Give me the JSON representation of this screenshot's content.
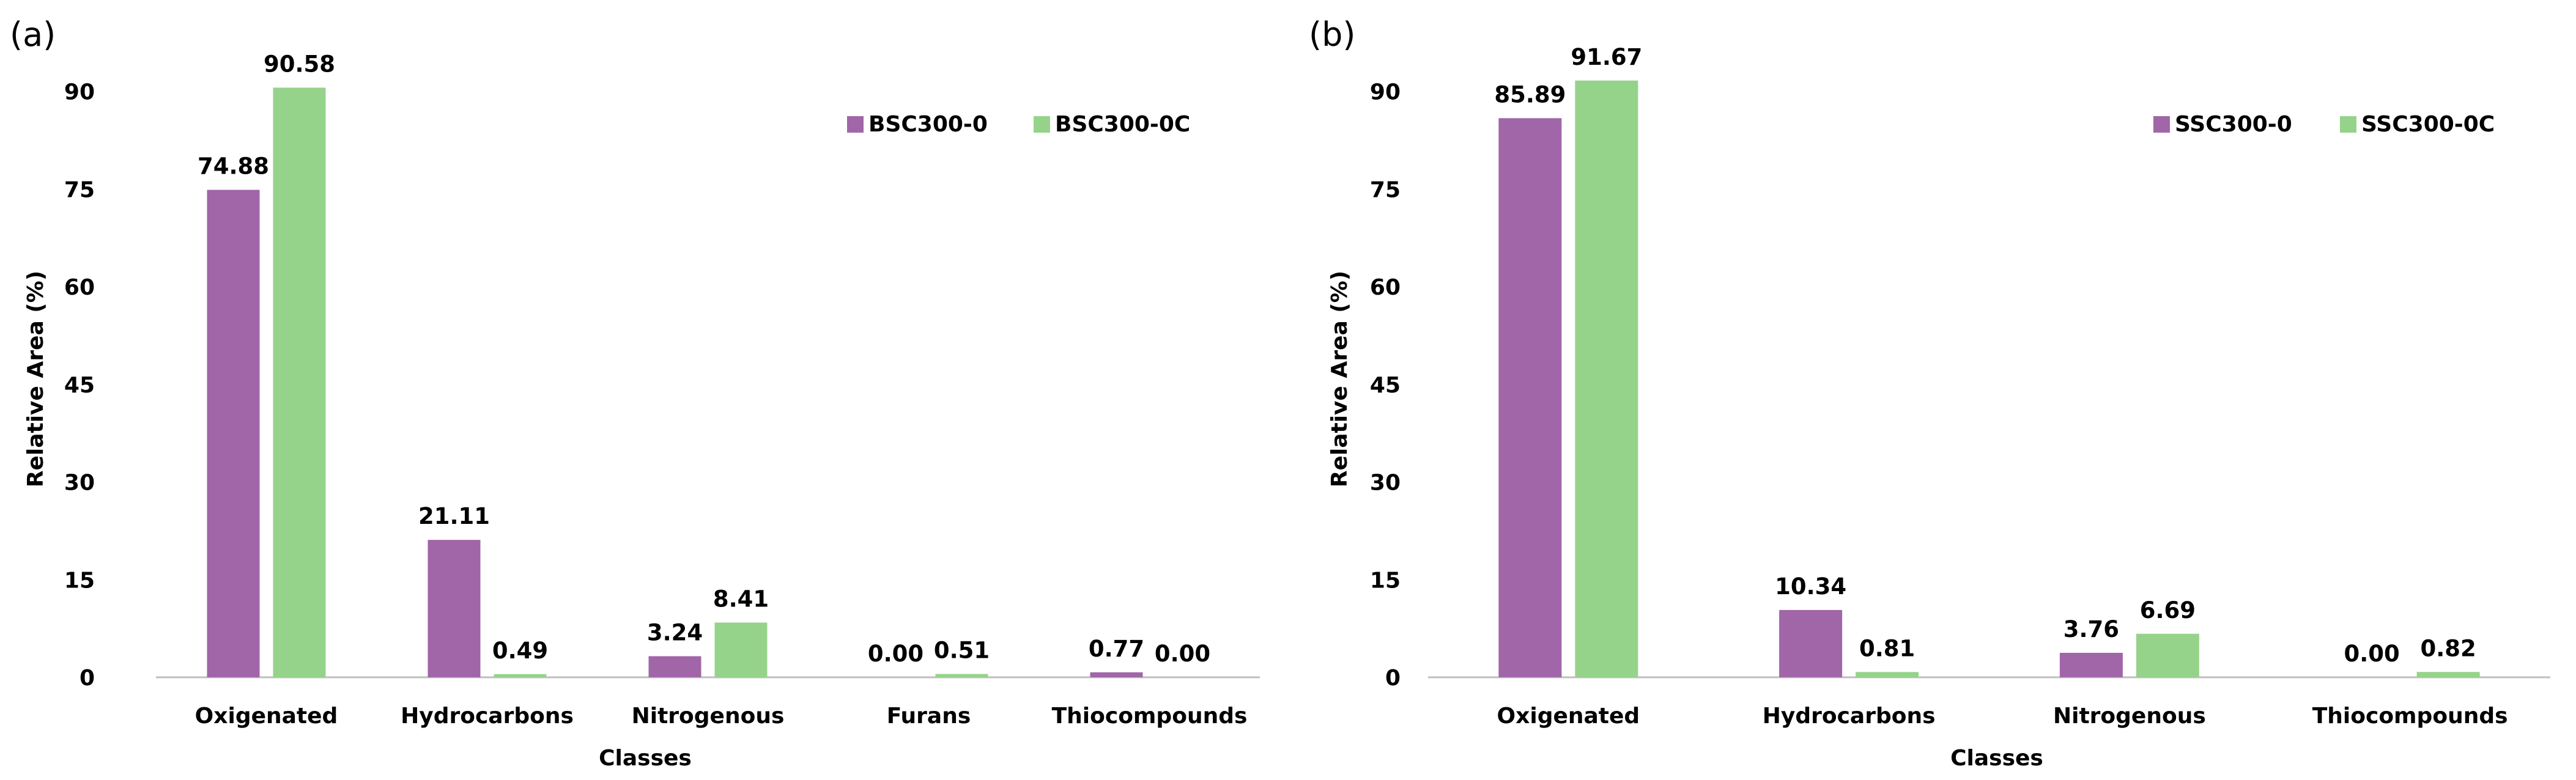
{
  "colors": {
    "series_a": "#a066a8",
    "series_b": "#95d38a",
    "axis": "#bfbfbf"
  },
  "chart_data": [
    {
      "type": "bar",
      "panel_label": "(a)",
      "categories": [
        "Oxigenated",
        "Hydrocarbons",
        "Nitrogenous",
        "Furans",
        "Thiocompounds"
      ],
      "series": [
        {
          "name": "BSC300-0",
          "values": [
            74.88,
            21.11,
            3.24,
            0.0,
            0.77
          ],
          "labels": [
            "74.88",
            "21.11",
            "3.24",
            "0.00",
            "0.77"
          ]
        },
        {
          "name": "BSC300-0C",
          "values": [
            90.58,
            0.49,
            8.41,
            0.51,
            0.0
          ],
          "labels": [
            "90.58",
            "0.49",
            "8.41",
            "0.51",
            "0.00"
          ]
        }
      ],
      "yticks": [
        0,
        15,
        30,
        45,
        60,
        75,
        90
      ],
      "ylim": [
        0,
        97
      ],
      "xlabel": "Classes",
      "ylabel": "Relative Area (%)",
      "legend": "top-right"
    },
    {
      "type": "bar",
      "panel_label": "(b)",
      "categories": [
        "Oxigenated",
        "Hydrocarbons",
        "Nitrogenous",
        "Thiocompounds"
      ],
      "series": [
        {
          "name": "SSC300-0",
          "values": [
            85.89,
            10.34,
            3.76,
            0.0
          ],
          "labels": [
            "85.89",
            "10.34",
            "3.76",
            "0.00"
          ]
        },
        {
          "name": "SSC300-0C",
          "values": [
            91.67,
            0.81,
            6.69,
            0.82
          ],
          "labels": [
            "91.67",
            "0.81",
            "6.69",
            "0.82"
          ]
        }
      ],
      "yticks": [
        0,
        15,
        30,
        45,
        60,
        75,
        90
      ],
      "ylim": [
        0,
        97
      ],
      "xlabel": "Classes",
      "ylabel": "Relative Area (%)",
      "legend": "top-right"
    }
  ]
}
